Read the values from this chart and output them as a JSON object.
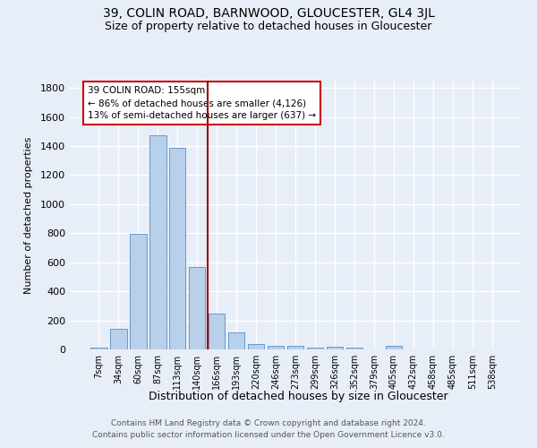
{
  "title": "39, COLIN ROAD, BARNWOOD, GLOUCESTER, GL4 3JL",
  "subtitle": "Size of property relative to detached houses in Gloucester",
  "xlabel": "Distribution of detached houses by size in Gloucester",
  "ylabel": "Number of detached properties",
  "bar_labels": [
    "7sqm",
    "34sqm",
    "60sqm",
    "87sqm",
    "113sqm",
    "140sqm",
    "166sqm",
    "193sqm",
    "220sqm",
    "246sqm",
    "273sqm",
    "299sqm",
    "326sqm",
    "352sqm",
    "379sqm",
    "405sqm",
    "432sqm",
    "458sqm",
    "485sqm",
    "511sqm",
    "538sqm"
  ],
  "bar_values": [
    15,
    140,
    795,
    1475,
    1385,
    565,
    245,
    115,
    40,
    27,
    27,
    12,
    17,
    12,
    0,
    22,
    0,
    0,
    0,
    0,
    0
  ],
  "bar_color": "#b8d0ea",
  "bar_edge_color": "#6699cc",
  "background_color": "#e8eef8",
  "plot_bg_color": "#e8eef8",
  "grid_color": "#ffffff",
  "vline_x": 5.55,
  "vline_color": "#990000",
  "annotation_line1": "39 COLIN ROAD: 155sqm",
  "annotation_line2": "← 86% of detached houses are smaller (4,126)",
  "annotation_line3": "13% of semi-detached houses are larger (637) →",
  "annotation_box_color": "#ffffff",
  "annotation_box_edge": "#cc0000",
  "footer_line1": "Contains HM Land Registry data © Crown copyright and database right 2024.",
  "footer_line2": "Contains public sector information licensed under the Open Government Licence v3.0.",
  "ylim": [
    0,
    1850
  ],
  "yticks": [
    0,
    200,
    400,
    600,
    800,
    1000,
    1200,
    1400,
    1600,
    1800
  ]
}
